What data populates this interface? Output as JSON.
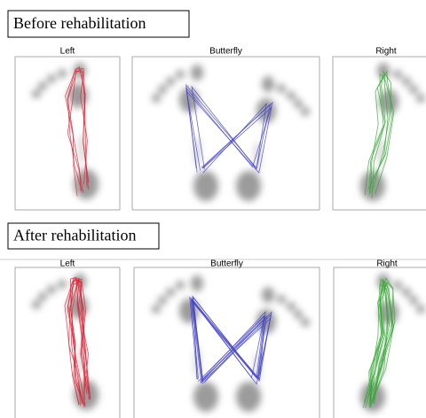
{
  "panels": [
    {
      "title": "Before rehabilitation",
      "plots": [
        "Left",
        "Butterfly",
        "Right"
      ]
    },
    {
      "title": "After rehabilitation",
      "plots": [
        "Left",
        "Butterfly",
        "Right"
      ]
    }
  ]
}
